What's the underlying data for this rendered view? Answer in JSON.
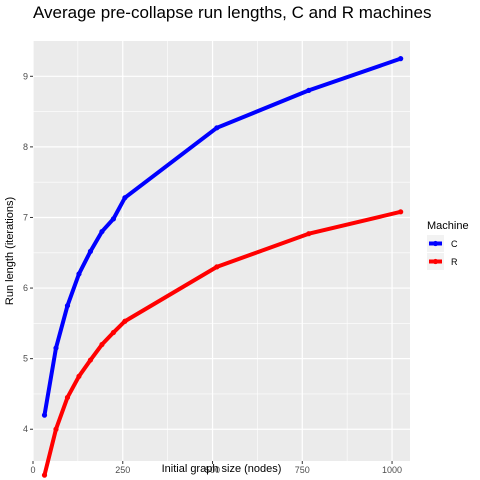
{
  "chart_data": {
    "type": "line",
    "title": "Average pre-collapse run lengths, C and R machines",
    "xlabel": "Initial graph size (nodes)",
    "ylabel": "Run length (iterations)",
    "xlim": [
      0,
      1050
    ],
    "ylim": [
      3.55,
      9.5
    ],
    "xticks": [
      0,
      250,
      500,
      750,
      1000
    ],
    "xtick_labels": [
      "0",
      "250",
      "500",
      "750",
      "1000"
    ],
    "yticks": [
      4,
      5,
      6,
      7,
      8,
      9
    ],
    "ytick_labels": [
      "4",
      "5",
      "6",
      "7",
      "8",
      "9"
    ],
    "grid": true,
    "legend": {
      "title": "Machine",
      "placement": "right"
    },
    "series": [
      {
        "name": "C",
        "color": "#0000ff",
        "x": [
          32,
          64,
          96,
          128,
          160,
          192,
          224,
          256,
          512,
          768,
          1024
        ],
        "y": [
          4.2,
          5.15,
          5.75,
          6.2,
          6.52,
          6.8,
          6.98,
          7.28,
          8.27,
          8.8,
          9.25
        ]
      },
      {
        "name": "R",
        "color": "#ff0000",
        "x": [
          32,
          64,
          96,
          128,
          160,
          192,
          224,
          256,
          512,
          768,
          1024
        ],
        "y": [
          3.35,
          4.0,
          4.45,
          4.75,
          4.98,
          5.2,
          5.37,
          5.53,
          6.3,
          6.77,
          7.08
        ]
      }
    ]
  }
}
